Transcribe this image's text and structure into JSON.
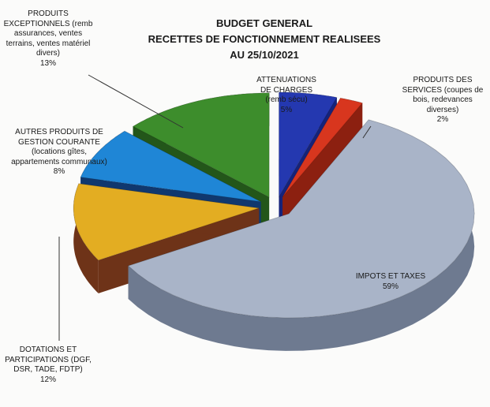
{
  "chart_data": {
    "type": "pie3d",
    "title": "BUDGET GENERAL",
    "subtitle": [
      "RECETTES DE FONCTIONNEMENT REALISEES",
      "AU 25/10/2021"
    ],
    "categories": [
      "ATTENUATIONS DE CHARGES (remb sécu)",
      "PRODUITS DES SERVICES (coupes de bois, redevances diverses)",
      "IMPOTS ET TAXES",
      "DOTATIONS ET PARTICIPATIONS (DGF, DSR, TADE, FDTP)",
      "AUTRES PRODUITS DE GESTION COURANTE (locations gîtes, appartements communaux)",
      "PRODUITS EXCEPTIONNELS (remb assurances, ventes terrains, ventes matériel divers)"
    ],
    "values": [
      5,
      2,
      59,
      12,
      8,
      13
    ],
    "value_labels": [
      "5%",
      "2%",
      "59%",
      "12%",
      "8%",
      "13%"
    ],
    "colors": [
      "#2438b0",
      "#d8361e",
      "#a9b4c8",
      "#e3ad22",
      "#1f86d6",
      "#3d8d2c"
    ],
    "side_colors": [
      "#16237a",
      "#8c2010",
      "#6e7a90",
      "#6e3318",
      "#10386e",
      "#23561a"
    ]
  }
}
